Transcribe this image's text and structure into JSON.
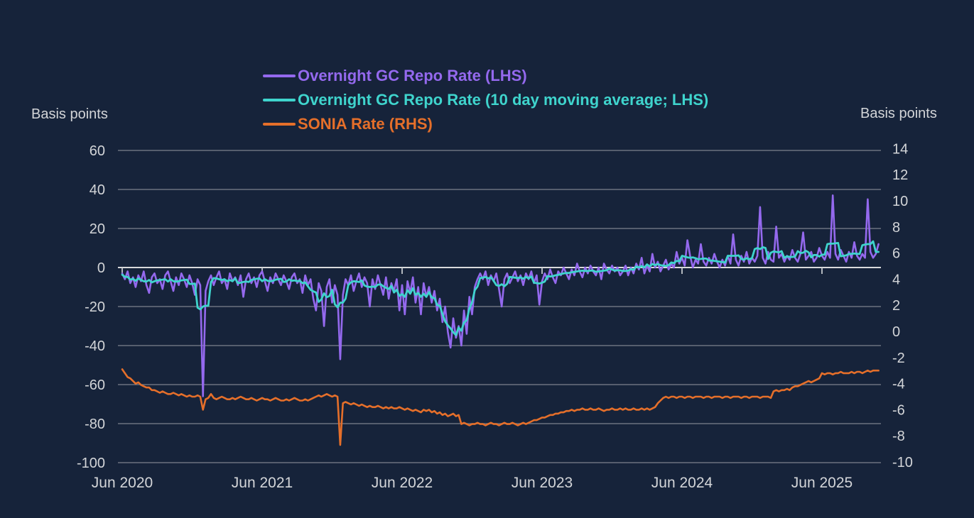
{
  "colors": {
    "background": "#16233a",
    "grid": "#6b7380",
    "zero_line": "#d9dadc",
    "axis_tick": "#c4c8ce",
    "text": "#d3d5d8",
    "repo_purple": "#9469ee",
    "repo_ma_cyan": "#3fd4cd",
    "sonia_orange": "#e56f2a"
  },
  "chart_data": {
    "type": "line",
    "x_start": 2020.4167,
    "x_step": 0.019231,
    "x_axis": {
      "tick_labels": [
        "Jun 2020",
        "Jun 2021",
        "Jun 2022",
        "Jun 2023",
        "Jun 2024",
        "Jun 2025"
      ],
      "tick_positions": [
        2020.4167,
        2021.4167,
        2022.4167,
        2023.4167,
        2024.4167,
        2025.4167
      ]
    },
    "left_axis": {
      "title": "Basis points",
      "ticks": [
        60,
        40,
        20,
        0,
        -20,
        -40,
        -60,
        -80,
        -100
      ],
      "min": -100,
      "max": 60
    },
    "right_axis": {
      "title": "Basis points",
      "ticks": [
        14,
        12,
        10,
        8,
        6,
        4,
        2,
        0,
        -2,
        -4,
        -6,
        -8,
        -10
      ],
      "min": -10,
      "max": 14
    },
    "grid": "horizontal-only",
    "legend_position": "top-center",
    "series": [
      {
        "name": "Overnight GC Repo Rate (LHS)",
        "axis": "left",
        "color": "#9469ee",
        "values": [
          -3,
          -6,
          -2,
          -8,
          -5,
          -10,
          -4,
          -7,
          -2,
          -9,
          -13,
          -5,
          -3,
          -8,
          -6,
          -11,
          -4,
          -2,
          -7,
          -12,
          -5,
          -9,
          -3,
          -6,
          -10,
          -4,
          -8,
          -14,
          -6,
          -9,
          -66,
          -12,
          -7,
          -4,
          -9,
          -5,
          -2,
          -8,
          -6,
          -11,
          -3,
          -7,
          -5,
          -9,
          -4,
          -15,
          -6,
          -3,
          -8,
          -5,
          -10,
          -4,
          -2,
          -7,
          -12,
          -5,
          -8,
          -3,
          -6,
          -9,
          -4,
          -7,
          -11,
          -5,
          -3,
          -8,
          -6,
          -13,
          -4,
          -9,
          -6,
          -16,
          -22,
          -8,
          -12,
          -30,
          -10,
          -6,
          -18,
          -9,
          -14,
          -47,
          -14,
          -6,
          -9,
          -4,
          -12,
          -7,
          -3,
          -10,
          -5,
          -8,
          -20,
          -6,
          -11,
          -4,
          -9,
          -14,
          -5,
          -16,
          -8,
          -12,
          -6,
          -22,
          -9,
          -24,
          -7,
          -13,
          -5,
          -18,
          -10,
          -24,
          -8,
          -15,
          -10,
          -18,
          -12,
          -22,
          -16,
          -28,
          -20,
          -33,
          -41,
          -26,
          -36,
          -30,
          -40,
          -22,
          -34,
          -15,
          -24,
          -10,
          -6,
          -3,
          -6,
          -2,
          -9,
          -4,
          -7,
          -3,
          -11,
          -20,
          -6,
          -3,
          -8,
          -5,
          -2,
          -7,
          -4,
          -9,
          -3,
          -6,
          -2,
          -8,
          -4,
          -19,
          -7,
          -3,
          -6,
          -1,
          -5,
          -8,
          -2,
          -4,
          0,
          -3,
          -6,
          -1,
          -4,
          2,
          -2,
          -5,
          0,
          -3,
          1,
          -2,
          -4,
          0,
          -6,
          2,
          -1,
          -3,
          1,
          -2,
          0,
          -4,
          -2,
          1,
          -4,
          0,
          -3,
          2,
          -1,
          5,
          -3,
          1,
          -2,
          7,
          0,
          3,
          -2,
          1,
          4,
          -1,
          2,
          0,
          8,
          2,
          5,
          1,
          14,
          6,
          0,
          4,
          2,
          12,
          3,
          1,
          5,
          2,
          7,
          3,
          0,
          4,
          1,
          6,
          2,
          17,
          4,
          1,
          6,
          3,
          8,
          2,
          5,
          3,
          6,
          31,
          5,
          2,
          8,
          4,
          3,
          21,
          5,
          7,
          3,
          6,
          4,
          9,
          5,
          3,
          7,
          18,
          4,
          6,
          8,
          3,
          5,
          10,
          6,
          4,
          8,
          5,
          37,
          7,
          4,
          9,
          6,
          3,
          8,
          5,
          13,
          6,
          4,
          7,
          5,
          35,
          8,
          5,
          7,
          12
        ]
      },
      {
        "name": "Overnight GC Repo Rate (10 day moving average; LHS)",
        "axis": "left",
        "color": "#3fd4cd",
        "moving_average": {
          "of_series": 0,
          "window": 5
        }
      },
      {
        "name": "SONIA Rate (RHS)",
        "axis": "right",
        "color": "#e56f2a",
        "values": [
          -2.9,
          -3.2,
          -3.5,
          -3.6,
          -3.8,
          -4.0,
          -3.9,
          -4.1,
          -4.2,
          -4.3,
          -4.3,
          -4.5,
          -4.5,
          -4.6,
          -4.7,
          -4.6,
          -4.7,
          -4.8,
          -4.8,
          -4.7,
          -4.8,
          -4.9,
          -4.8,
          -4.9,
          -5.0,
          -4.9,
          -5.0,
          -5.0,
          -4.9,
          -5.0,
          -6.0,
          -5.2,
          -5.1,
          -4.8,
          -5.1,
          -5.2,
          -5.1,
          -5.0,
          -5.1,
          -5.2,
          -5.2,
          -5.1,
          -5.2,
          -5.1,
          -5.0,
          -5.1,
          -5.2,
          -5.2,
          -5.1,
          -5.2,
          -5.3,
          -5.2,
          -5.1,
          -5.2,
          -5.2,
          -5.3,
          -5.2,
          -5.1,
          -5.2,
          -5.3,
          -5.3,
          -5.2,
          -5.3,
          -5.2,
          -5.1,
          -5.2,
          -5.3,
          -5.3,
          -5.2,
          -5.3,
          -5.2,
          -5.1,
          -5.0,
          -4.9,
          -5.0,
          -4.9,
          -4.8,
          -4.9,
          -5.0,
          -4.9,
          -5.0,
          -8.7,
          -5.5,
          -5.4,
          -5.5,
          -5.6,
          -5.5,
          -5.6,
          -5.7,
          -5.6,
          -5.7,
          -5.8,
          -5.7,
          -5.8,
          -5.8,
          -5.7,
          -5.8,
          -5.9,
          -5.8,
          -5.9,
          -5.8,
          -5.9,
          -5.9,
          -5.8,
          -5.9,
          -6.0,
          -5.9,
          -6.0,
          -6.1,
          -6.0,
          -6.1,
          -6.2,
          -6.0,
          -6.1,
          -6.0,
          -6.2,
          -6.1,
          -6.3,
          -6.2,
          -6.4,
          -6.3,
          -6.5,
          -6.4,
          -6.3,
          -6.5,
          -6.4,
          -7.1,
          -7.0,
          -7.1,
          -7.2,
          -7.1,
          -7.1,
          -7.0,
          -7.1,
          -7.1,
          -7.2,
          -7.1,
          -7.0,
          -7.1,
          -7.1,
          -7.2,
          -7.1,
          -7.0,
          -7.1,
          -7.1,
          -7.0,
          -7.1,
          -7.2,
          -7.1,
          -7.0,
          -7.1,
          -7.0,
          -6.9,
          -6.8,
          -6.8,
          -6.7,
          -6.6,
          -6.6,
          -6.5,
          -6.4,
          -6.4,
          -6.3,
          -6.3,
          -6.2,
          -6.2,
          -6.1,
          -6.1,
          -6.0,
          -6.1,
          -6.0,
          -6.0,
          -5.9,
          -6.0,
          -6.0,
          -5.9,
          -6.0,
          -6.0,
          -5.9,
          -6.0,
          -6.1,
          -6.0,
          -6.0,
          -5.9,
          -6.0,
          -6.0,
          -5.9,
          -6.0,
          -5.9,
          -6.0,
          -6.0,
          -5.9,
          -6.0,
          -6.0,
          -5.9,
          -6.0,
          -5.9,
          -6.0,
          -5.9,
          -5.8,
          -5.5,
          -5.3,
          -5.1,
          -5.0,
          -5.1,
          -5.0,
          -5.0,
          -5.1,
          -5.0,
          -5.0,
          -5.1,
          -5.0,
          -5.0,
          -5.1,
          -5.0,
          -5.0,
          -5.0,
          -5.1,
          -5.0,
          -5.0,
          -5.1,
          -5.0,
          -5.0,
          -5.0,
          -5.1,
          -5.0,
          -5.0,
          -5.1,
          -5.0,
          -5.0,
          -5.0,
          -5.1,
          -5.0,
          -5.0,
          -5.1,
          -5.0,
          -5.0,
          -5.0,
          -5.1,
          -5.0,
          -5.0,
          -5.0,
          -5.1,
          -4.6,
          -4.5,
          -4.6,
          -4.5,
          -4.5,
          -4.4,
          -4.5,
          -4.3,
          -4.2,
          -4.2,
          -4.1,
          -4.0,
          -3.9,
          -3.8,
          -3.9,
          -3.8,
          -3.7,
          -3.6,
          -3.2,
          -3.3,
          -3.2,
          -3.2,
          -3.3,
          -3.2,
          -3.2,
          -3.1,
          -3.2,
          -3.2,
          -3.2,
          -3.1,
          -3.2,
          -3.1,
          -3.1,
          -3.2,
          -3.1,
          -3.0,
          -3.1,
          -3.0,
          -3.0,
          -3.0
        ]
      }
    ]
  }
}
